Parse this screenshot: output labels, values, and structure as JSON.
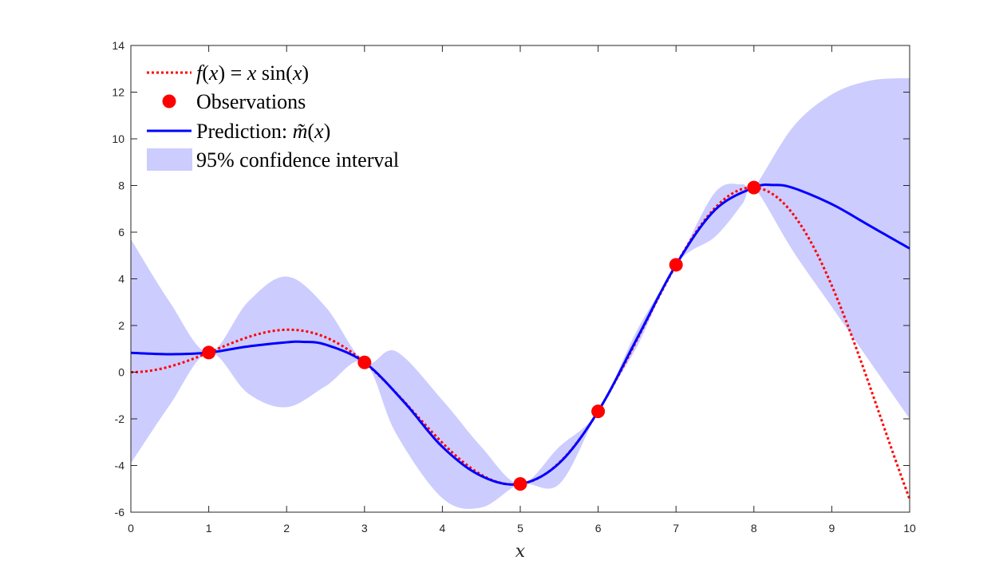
{
  "chart_data": {
    "type": "line",
    "title": "",
    "xlabel": "x",
    "ylabel": "",
    "xlim": [
      0,
      10
    ],
    "ylim": [
      -6,
      14
    ],
    "xticks": [
      0,
      1,
      2,
      3,
      4,
      5,
      6,
      7,
      8,
      9,
      10
    ],
    "yticks": [
      -6,
      -4,
      -2,
      0,
      2,
      4,
      6,
      8,
      10,
      12,
      14
    ],
    "grid": false,
    "legend_position": "top-left",
    "series": [
      {
        "name": "f(x) = x sin(x)",
        "kind": "function",
        "function": "x*sin(x)",
        "style": "dotted",
        "color": "#ff0000",
        "x": [
          0,
          0.5,
          1,
          1.5,
          2,
          2.5,
          3,
          3.5,
          4,
          4.5,
          5,
          5.5,
          6,
          6.5,
          7,
          7.5,
          8,
          8.5,
          9,
          9.5,
          10
        ],
        "values": [
          0,
          0.24,
          0.84,
          1.5,
          1.82,
          1.5,
          0.42,
          -1.23,
          -3.03,
          -4.4,
          -4.79,
          -3.86,
          -1.68,
          1.4,
          4.6,
          7.04,
          7.91,
          6.8,
          3.71,
          -0.72,
          -5.44
        ]
      },
      {
        "name": "Observations",
        "kind": "scatter",
        "color": "#ff0000",
        "x": [
          1,
          3,
          5,
          6,
          7,
          8
        ],
        "values": [
          0.84,
          0.42,
          -4.79,
          -1.68,
          4.6,
          7.91
        ]
      },
      {
        "name": "Prediction: m̃(x)",
        "kind": "line",
        "color": "#0000ff",
        "x": [
          0,
          0.5,
          1,
          1.5,
          2,
          2.2,
          2.5,
          3,
          3.5,
          4,
          4.5,
          5,
          5.5,
          6,
          6.5,
          7,
          7.5,
          8,
          8.25,
          8.5,
          9,
          9.5,
          10
        ],
        "values": [
          0.83,
          0.77,
          0.84,
          1.1,
          1.28,
          1.3,
          1.18,
          0.42,
          -1.25,
          -3.2,
          -4.45,
          -4.79,
          -3.9,
          -1.68,
          1.45,
          4.6,
          6.95,
          7.91,
          8.02,
          7.9,
          7.2,
          6.25,
          5.3
        ]
      },
      {
        "name": "95% confidence interval",
        "kind": "band",
        "color": "#ccccff",
        "x": [
          0,
          0.5,
          1,
          1.5,
          2,
          2.5,
          3,
          3.4,
          4,
          4.5,
          5,
          5.5,
          6,
          6.5,
          7,
          7.5,
          7.85,
          8,
          8.5,
          9,
          9.5,
          10
        ],
        "lower": [
          -3.9,
          -1.4,
          0.84,
          -0.9,
          -1.5,
          -0.6,
          0.42,
          -2.6,
          -5.4,
          -5.8,
          -4.79,
          -4.8,
          -1.68,
          1.1,
          4.6,
          5.8,
          7.2,
          7.91,
          5.2,
          2.8,
          0.4,
          -2.0
        ],
        "upper": [
          5.7,
          3.0,
          0.84,
          3.0,
          4.1,
          2.8,
          0.42,
          0.9,
          -1.2,
          -3.2,
          -4.79,
          -3.2,
          -1.68,
          1.8,
          4.6,
          7.7,
          8.05,
          7.91,
          10.5,
          11.9,
          12.5,
          12.6
        ]
      }
    ],
    "legend": [
      {
        "label_parts": [
          "f",
          "(",
          "x",
          ") = ",
          "x",
          " sin(",
          "x",
          ")"
        ],
        "italic": [
          true,
          false,
          true,
          false,
          true,
          false,
          true,
          false
        ]
      },
      {
        "label_parts": [
          "Observations"
        ],
        "italic": [
          false
        ]
      },
      {
        "label_parts": [
          "Prediction:  ",
          "m̃",
          "(",
          "x",
          ")"
        ],
        "italic": [
          false,
          true,
          false,
          true,
          false
        ]
      },
      {
        "label_parts": [
          "95% confidence interval"
        ],
        "italic": [
          false
        ]
      }
    ]
  }
}
